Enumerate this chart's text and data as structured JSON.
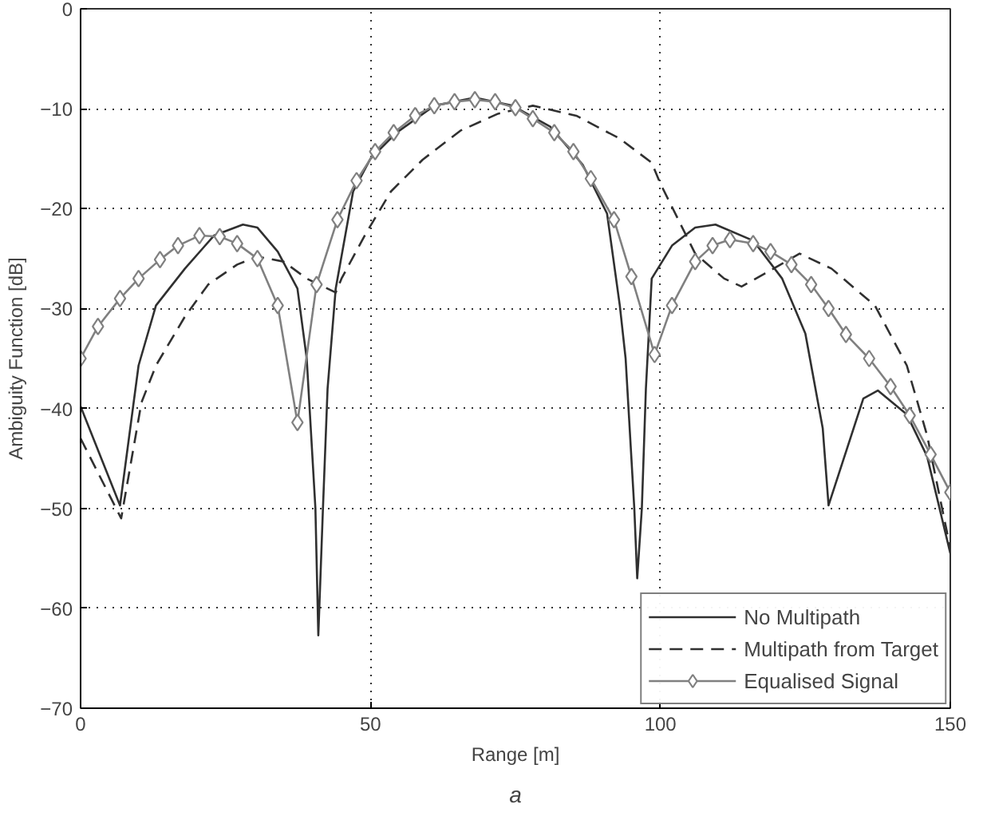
{
  "chart_data": {
    "type": "line",
    "xlabel": "Range [m]",
    "ylabel": "Ambiguity Function [dB]",
    "annotations": [
      "a"
    ],
    "xlim": [
      0,
      150
    ],
    "ylim": [
      -70,
      0
    ],
    "xticks": [
      0,
      50,
      100,
      150
    ],
    "yticks": [
      -70,
      -60,
      -50,
      -40,
      -30,
      -20,
      -10,
      0
    ],
    "grid": true,
    "legend": "bottom right",
    "series": [
      {
        "name": "No Multipath",
        "color": "#303030",
        "line_style": "solid",
        "marker": "none",
        "x": [
          0,
          6.8,
          10,
          13,
          18,
          23,
          28,
          30.5,
          34,
          37.4,
          39,
          40.5,
          41,
          41.8,
          42.6,
          44,
          47,
          50,
          54.5,
          61,
          68,
          74.5,
          81,
          86.6,
          90.8,
          93,
          94,
          95.5,
          96,
          96.8,
          97.5,
          98.5,
          102,
          106,
          109.5,
          116,
          121,
          125,
          128,
          129,
          135,
          137.5,
          142.5,
          146,
          150
        ],
        "values": [
          -39.8,
          -49.7,
          -35.7,
          -29.7,
          -26,
          -22.7,
          -21.6,
          -21.9,
          -24.3,
          -28,
          -35,
          -50,
          -62.7,
          -50,
          -38,
          -28,
          -18.3,
          -15,
          -12.4,
          -9.7,
          -8.9,
          -9.7,
          -11.8,
          -15.6,
          -20.5,
          -29.7,
          -35,
          -50,
          -57,
          -50,
          -38,
          -27,
          -23.7,
          -21.9,
          -21.6,
          -23.2,
          -27,
          -32.5,
          -42,
          -49.7,
          -39,
          -38.2,
          -40.6,
          -44.8,
          -54.5
        ]
      },
      {
        "name": "Multipath from Target",
        "color": "#303030",
        "line_style": "dashed",
        "marker": "none",
        "x": [
          0,
          7,
          10.5,
          13,
          18,
          22,
          27,
          30.5,
          35,
          39,
          44,
          45,
          49,
          53.5,
          59,
          65.5,
          72,
          78,
          85.5,
          93,
          98.5,
          100,
          103,
          106,
          111,
          114,
          118,
          124,
          129.5,
          137,
          142.5,
          146,
          150
        ],
        "values": [
          -43,
          -51,
          -39.4,
          -35.7,
          -30.8,
          -27.6,
          -25.6,
          -24.8,
          -25.3,
          -27,
          -28.4,
          -27,
          -22.7,
          -18.3,
          -15.1,
          -12.2,
          -10.5,
          -9.7,
          -10.7,
          -13,
          -15.4,
          -17.5,
          -21,
          -24.5,
          -27,
          -27.8,
          -26.5,
          -24.5,
          -26,
          -29.7,
          -35.7,
          -42.7,
          -54
        ]
      },
      {
        "name": "Equalised Signal",
        "color": "#808080",
        "line_style": "solid",
        "marker": "diamond",
        "x": [
          0,
          3,
          6.8,
          10,
          13.7,
          16.8,
          20.5,
          24,
          27,
          30.5,
          34,
          37.4,
          40.7,
          44.3,
          47.6,
          50.8,
          54,
          57.7,
          61,
          64.5,
          68,
          71.5,
          75,
          78,
          81.7,
          85,
          88,
          92,
          95,
          99,
          102,
          106,
          109,
          112,
          116,
          119,
          122.6,
          126,
          129,
          132,
          136,
          139.7,
          143,
          146.6,
          150
        ],
        "values": [
          -35,
          -31.8,
          -29,
          -27,
          -25.1,
          -23.7,
          -22.7,
          -22.8,
          -23.5,
          -25,
          -29.7,
          -41.4,
          -27.6,
          -21.1,
          -17.2,
          -14.3,
          -12.4,
          -10.7,
          -9.7,
          -9.3,
          -9.1,
          -9.3,
          -9.9,
          -11,
          -12.4,
          -14.3,
          -17,
          -21.1,
          -26.8,
          -34.6,
          -29.7,
          -25.3,
          -23.7,
          -23.1,
          -23.5,
          -24.3,
          -25.6,
          -27.6,
          -30,
          -32.6,
          -35,
          -37.8,
          -40.7,
          -44.6,
          -48.4
        ]
      }
    ]
  }
}
